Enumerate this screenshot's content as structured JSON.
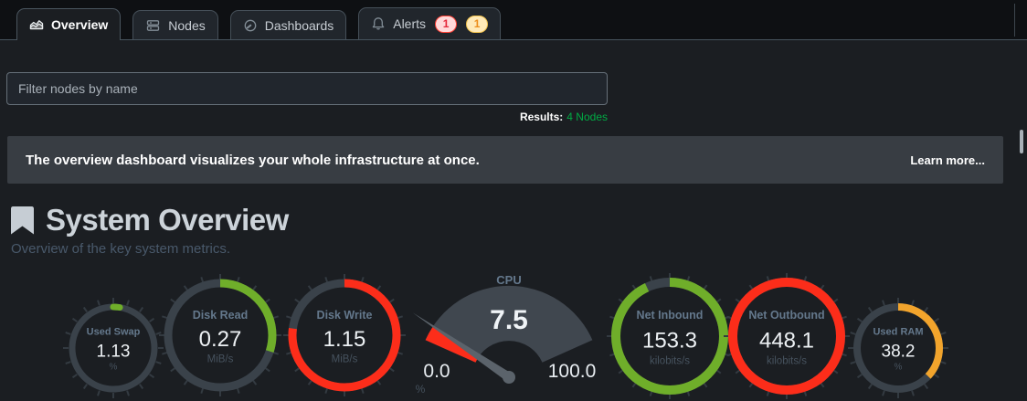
{
  "tabs": [
    {
      "id": "overview",
      "label": "Overview",
      "icon": "area-chart-icon",
      "active": true,
      "badges": []
    },
    {
      "id": "nodes",
      "label": "Nodes",
      "icon": "nodes-icon",
      "active": false,
      "badges": []
    },
    {
      "id": "dashboards",
      "label": "Dashboards",
      "icon": "gauge-icon",
      "active": false,
      "badges": []
    },
    {
      "id": "alerts",
      "label": "Alerts",
      "icon": "bell-icon",
      "active": false,
      "badges": [
        {
          "text": "1",
          "type": "critical"
        },
        {
          "text": "1",
          "type": "warning"
        }
      ]
    }
  ],
  "filter": {
    "placeholder": "Filter nodes by name"
  },
  "results": {
    "label": "Results:",
    "value": "4 Nodes",
    "value_color": "#00ab44"
  },
  "banner": {
    "text": "The overview dashboard visualizes your whole infrastructure at once.",
    "link_label": "Learn more..."
  },
  "section": {
    "title": "System Overview",
    "subtitle": "Overview of the key system metrics."
  },
  "colors": {
    "green": "#6fae2a",
    "red": "#fc2d1a",
    "orange": "#f2a42c",
    "ring_base": "#3a424a",
    "gauge_fan": "#40474f",
    "needle": "#5b636b"
  },
  "chart_data": [
    {
      "id": "used_swap",
      "type": "radial-gauge",
      "title": "Used Swap",
      "value": "1.13",
      "unit": "%",
      "percent": 0.025,
      "color": "#6fae2a"
    },
    {
      "id": "disk_read",
      "type": "radial-gauge",
      "title": "Disk Read",
      "value": "0.27",
      "unit": "MiB/s",
      "percent": 0.3,
      "color": "#6fae2a"
    },
    {
      "id": "disk_write",
      "type": "radial-gauge",
      "title": "Disk Write",
      "value": "1.15",
      "unit": "MiB/s",
      "percent": 0.77,
      "color": "#fc2d1a"
    },
    {
      "id": "cpu",
      "type": "angular-gauge",
      "title": "CPU",
      "value": "7.5",
      "unit": "%",
      "min": "0.0",
      "max": "100.0",
      "percent": 0.075,
      "color": "#fc2d1a"
    },
    {
      "id": "net_inbound",
      "type": "radial-gauge",
      "title": "Net Inbound",
      "value": "153.3",
      "unit": "kilobits/s",
      "percent": 0.93,
      "color": "#6fae2a"
    },
    {
      "id": "net_outbound",
      "type": "radial-gauge",
      "title": "Net Outbound",
      "value": "448.1",
      "unit": "kilobits/s",
      "percent": 1.0,
      "color": "#fc2d1a"
    },
    {
      "id": "used_ram",
      "type": "radial-gauge",
      "title": "Used RAM",
      "value": "38.2",
      "unit": "%",
      "percent": 0.37,
      "color": "#f2a42c"
    }
  ]
}
